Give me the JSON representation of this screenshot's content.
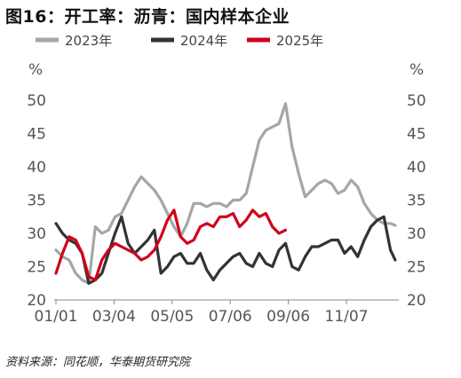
{
  "title": "图16：开工率：沥青：国内样本企业",
  "source": "资料来源：同花顺，华泰期货研究院",
  "chart_data": {
    "type": "line",
    "x_tick_labels": [
      "01/01",
      "03/04",
      "05/05",
      "07/06",
      "09/06",
      "11/07"
    ],
    "y_unit_label": "%",
    "y_ticks": [
      20,
      25,
      30,
      35,
      40,
      45,
      50
    ],
    "ylim": [
      20,
      50
    ],
    "x_range_days": [
      0,
      364
    ],
    "x_tick_days": [
      0,
      62,
      124,
      186,
      248,
      310
    ],
    "grid": false,
    "legend_position": "top",
    "colors": {
      "2023年": "#a6a6a6",
      "2024年": "#333333",
      "2025年": "#d0021b"
    },
    "series": [
      {
        "name": "2023年",
        "x": [
          0,
          7,
          14,
          21,
          28,
          35,
          42,
          49,
          56,
          63,
          70,
          77,
          84,
          91,
          98,
          105,
          112,
          119,
          126,
          133,
          140,
          147,
          154,
          161,
          168,
          175,
          182,
          189,
          196,
          203,
          210,
          217,
          224,
          231,
          238,
          245,
          252,
          259,
          266,
          273,
          280,
          287,
          294,
          301,
          308,
          315,
          322,
          329,
          336,
          343,
          350,
          357,
          362
        ],
        "y": [
          27.5,
          26.5,
          26,
          24,
          23,
          22.5,
          31,
          30,
          30.5,
          32.5,
          33,
          35,
          37,
          38.5,
          37.5,
          36.5,
          35,
          33,
          31,
          29.5,
          31.5,
          34.5,
          34.5,
          34,
          34.5,
          34.5,
          34,
          35,
          35,
          36,
          40,
          44,
          45.5,
          46,
          46.5,
          49.5,
          43,
          39,
          35.5,
          36.5,
          37.5,
          38,
          37.5,
          36,
          36.5,
          38,
          37,
          34.5,
          33,
          32,
          31.5,
          31.5,
          31.2
        ]
      },
      {
        "name": "2024年",
        "x": [
          0,
          7,
          14,
          21,
          28,
          35,
          42,
          49,
          56,
          63,
          70,
          77,
          84,
          91,
          98,
          105,
          112,
          119,
          126,
          133,
          140,
          147,
          154,
          161,
          168,
          175,
          182,
          189,
          196,
          203,
          210,
          217,
          224,
          231,
          238,
          245,
          252,
          259,
          266,
          273,
          280,
          287,
          294,
          301,
          308,
          315,
          322,
          329,
          336,
          343,
          350,
          357,
          362
        ],
        "y": [
          31.5,
          30,
          29,
          28.5,
          27,
          22.5,
          23,
          24,
          27,
          30,
          32.5,
          28.5,
          27,
          28,
          29,
          30.5,
          24,
          25,
          26.5,
          27,
          25.5,
          25.5,
          27,
          24.5,
          23,
          24.5,
          25.5,
          26.5,
          27,
          25.5,
          25,
          27,
          25.5,
          25,
          27.5,
          28.5,
          25,
          24.5,
          26.5,
          28,
          28,
          28.5,
          29,
          29,
          27,
          28,
          26.5,
          29,
          31,
          32,
          32.5,
          27.5,
          26
        ]
      },
      {
        "name": "2025年",
        "x": [
          0,
          7,
          14,
          21,
          28,
          35,
          42,
          49,
          56,
          63,
          70,
          77,
          84,
          91,
          98,
          105,
          112,
          119,
          126,
          133,
          140,
          147,
          154,
          161,
          168,
          175,
          182,
          189,
          196,
          203,
          210,
          217,
          224,
          231,
          238,
          245
        ],
        "y": [
          24,
          27,
          29.5,
          29,
          27,
          23.5,
          23,
          26,
          27.5,
          28.5,
          28,
          27.5,
          27,
          26,
          26.5,
          27.5,
          29.5,
          32,
          33.5,
          29.5,
          28.5,
          29,
          31,
          31.5,
          31,
          32.5,
          32.5,
          33,
          31,
          32,
          33.5,
          32.5,
          33,
          31,
          30,
          30.5
        ]
      }
    ]
  }
}
